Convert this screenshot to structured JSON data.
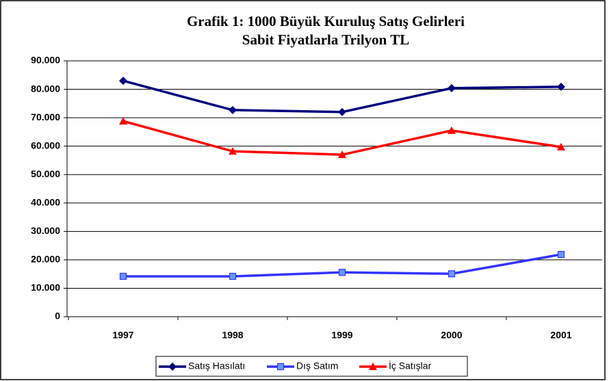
{
  "chart_data": {
    "type": "line",
    "title": "Grafik 1: 1000 Büyük Kuruluş Satış Gelirleri",
    "subtitle": "Sabit Fiyatlarla Trilyon TL",
    "categories": [
      "1997",
      "1998",
      "1999",
      "2000",
      "2001"
    ],
    "series": [
      {
        "name": "Satış Hasılatı",
        "color": "#000080",
        "marker": "diamond",
        "values": [
          83000,
          72700,
          72000,
          80400,
          80900
        ]
      },
      {
        "name": "Dış Satım",
        "color": "#3333ff",
        "marker": "square",
        "values": [
          14200,
          14200,
          15600,
          15100,
          21900
        ]
      },
      {
        "name": "İç Satışlar",
        "color": "#ff0000",
        "marker": "triangle",
        "values": [
          68800,
          58200,
          57000,
          65500,
          59700
        ]
      }
    ],
    "ylim": [
      0,
      90000
    ],
    "yticks": [
      0,
      {
        "value": 10000,
        "label": "10.000"
      },
      {
        "value": 20000,
        "label": "20.000"
      },
      {
        "value": 30000,
        "label": "30.000"
      },
      {
        "value": 40000,
        "label": "40.000"
      },
      {
        "value": 50000,
        "label": "50.000"
      },
      {
        "value": 60000,
        "label": "60.000"
      },
      {
        "value": 70000,
        "label": "70.000"
      },
      {
        "value": 80000,
        "label": "80.000"
      },
      {
        "value": 90000,
        "label": "90.000"
      }
    ],
    "grid": true,
    "legend": "bottom"
  }
}
